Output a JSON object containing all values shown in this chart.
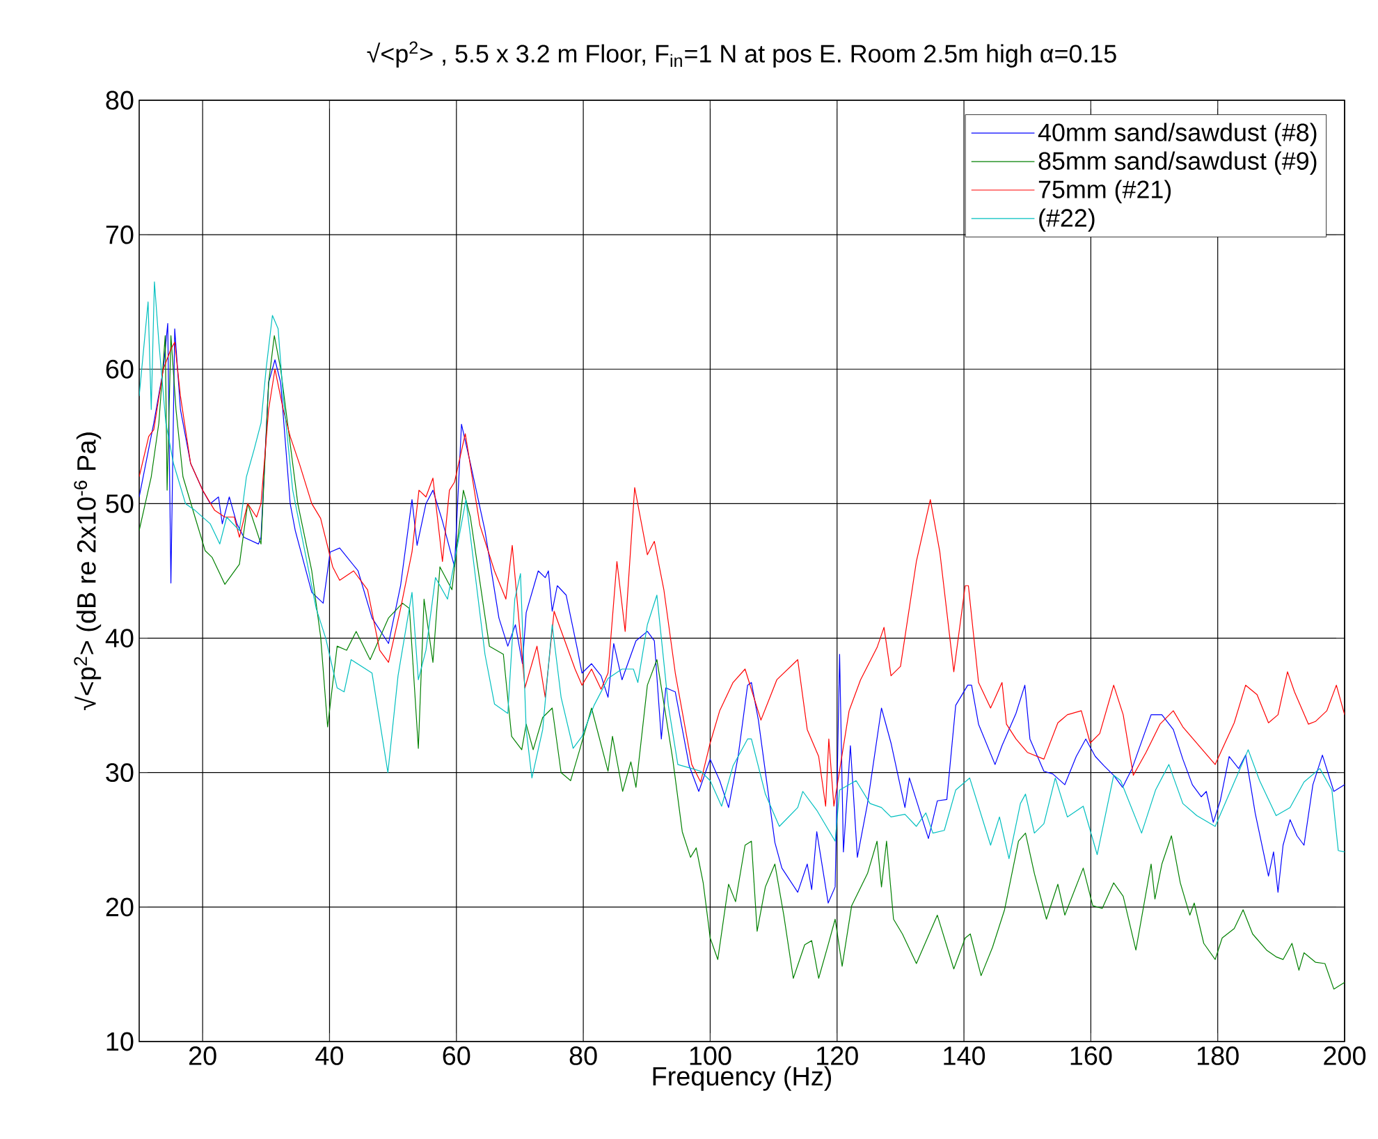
{
  "chart_data": {
    "type": "line",
    "title": "√<p$^{2}$> , 5.5 x 3.2 m Floor, F$_{in}$=1 N at pos E. Room 2.5m high α=0.15",
    "xlabel": "Frequency (Hz)",
    "ylabel": "√<p$^{2}$> (dB re 2x10$^{-6}$ Pa)",
    "xlim": [
      10,
      200
    ],
    "xticks": [
      20,
      40,
      60,
      80,
      100,
      120,
      140,
      160,
      180,
      200
    ],
    "ylim": [
      10,
      80
    ],
    "yticks": [
      10,
      20,
      30,
      40,
      50,
      60,
      70,
      80
    ],
    "grid": true,
    "legend": "top right",
    "series": [
      {
        "name": "40mm sand/sawdust (#8)",
        "color": "#0000ff",
        "x": [
          10,
          12.3,
          13.8,
          14.5,
          15,
          15.6,
          16.5,
          18.1,
          20,
          21.2,
          22.5,
          23.1,
          24.2,
          25.4,
          26.5,
          28.8,
          29.2,
          30.4,
          31.4,
          32.3,
          33.8,
          34.6,
          37.2,
          39,
          40.1,
          41.6,
          44.5,
          46.7,
          49.3,
          51.2,
          53,
          53.8,
          55.2,
          56.3,
          57.8,
          59.7,
          60.8,
          62.2,
          64.5,
          66.7,
          68.1,
          69.3,
          70.4,
          71.0,
          72.9,
          74,
          74.5,
          75.1,
          75.9,
          77.3,
          79.1,
          79.8,
          81.3,
          82.8,
          83.9,
          84.8,
          86.1,
          88.3,
          90.1,
          91.2,
          92.3,
          93,
          94.5,
          96.7,
          98.2,
          100,
          101.5,
          102.9,
          104.4,
          105.9,
          106.5,
          107.6,
          110.2,
          111.3,
          113.8,
          115.3,
          116,
          116.8,
          118.6,
          119.7,
          120.4,
          121,
          122.1,
          123.2,
          124.8,
          127,
          128.5,
          130.7,
          131.4,
          134.4,
          135.8,
          137.3,
          138.7,
          140.6,
          141.2,
          142.3,
          144.9,
          146,
          148.2,
          149.6,
          150.4,
          152.6,
          154,
          155.9,
          157.7,
          159.2,
          160.7,
          162.1,
          163.6,
          165,
          166.5,
          169.5,
          171.2,
          173,
          174.5,
          176,
          177.4,
          178.2,
          179.3,
          180.4,
          181.8,
          183.3,
          184.4,
          185.9,
          188,
          188.8,
          189.5,
          190.3,
          191.4,
          192.5,
          193.6,
          195,
          196.5,
          198.3,
          200
        ],
        "values": [
          50.5,
          56,
          60,
          63.4,
          44.1,
          63,
          57,
          53,
          51,
          50,
          50.5,
          48.5,
          50.5,
          48.5,
          47.5,
          47,
          47.5,
          59,
          60.7,
          59,
          50,
          48,
          43.4,
          42.6,
          46.4,
          46.7,
          45,
          41.5,
          39.6,
          43.9,
          50.3,
          46.9,
          50,
          51,
          48.7,
          45.3,
          55.9,
          53,
          48,
          41.5,
          39.4,
          41,
          38.1,
          41.9,
          45,
          44.5,
          45,
          42,
          43.9,
          43.2,
          39.1,
          37.4,
          38.1,
          37.2,
          35.6,
          39.6,
          36.9,
          39.8,
          40.5,
          39.8,
          32.5,
          36.3,
          36,
          30.5,
          28.6,
          31,
          29.4,
          27.4,
          31.2,
          36.5,
          36.7,
          33.9,
          24.8,
          22.9,
          21.1,
          23.2,
          21.3,
          25.6,
          20.3,
          21.5,
          38.8,
          24.1,
          32,
          23.7,
          27.7,
          34.8,
          32.2,
          27.4,
          29.6,
          25.1,
          27.9,
          28,
          35,
          36.5,
          36.5,
          33.6,
          30.6,
          32,
          34.4,
          36.5,
          32.5,
          30.1,
          29.9,
          29.1,
          31.2,
          32.5,
          31.2,
          30.5,
          29.8,
          28.9,
          30.3,
          34.3,
          34.3,
          33.2,
          31,
          29.1,
          28.2,
          28.6,
          26.3,
          27.9,
          31.2,
          30.3,
          31.3,
          27,
          22.3,
          24.1,
          21.1,
          24.6,
          26.5,
          25.3,
          24.6,
          29.1,
          31.3,
          28.6,
          29.1
        ]
      },
      {
        "name": "85mm sand/sawdust (#9)",
        "color": "#008000",
        "x": [
          10,
          11.9,
          13.1,
          14.1,
          14.4,
          15,
          15.8,
          16.9,
          18.8,
          20.4,
          21.5,
          23.5,
          25.8,
          27.1,
          28.5,
          29.2,
          30.4,
          31.3,
          32.3,
          35,
          37.2,
          38.6,
          39.7,
          41.2,
          42.7,
          44.2,
          46.4,
          49.3,
          51.5,
          52.6,
          54,
          54.9,
          56.3,
          57.4,
          59.3,
          61.1,
          62.2,
          65.2,
          67.4,
          68.7,
          70.3,
          71,
          72.1,
          73.6,
          75.1,
          76.5,
          78,
          79.5,
          81.3,
          83.9,
          84.6,
          86.2,
          87.5,
          88.3,
          90.1,
          91.6,
          94.1,
          95.6,
          96.9,
          97.8,
          98.9,
          100,
          101.2,
          102.9,
          104,
          105.5,
          106.5,
          107.4,
          108.7,
          110.2,
          111.6,
          113.1,
          114.9,
          116,
          117.1,
          118.6,
          119.7,
          120.8,
          122.3,
          124.8,
          126.3,
          127,
          127.8,
          128.9,
          130.3,
          132.5,
          135.8,
          138.4,
          140.2,
          141,
          142.7,
          144.5,
          146.4,
          148.6,
          149.7,
          151.1,
          153,
          154.8,
          155.9,
          158.8,
          160.3,
          161.8,
          163.6,
          165.1,
          167.1,
          169.5,
          170.1,
          171.2,
          172.7,
          174.1,
          175.6,
          176.3,
          177.8,
          179.6,
          180.7,
          182.6,
          184,
          185.5,
          187.7,
          189.2,
          190.3,
          191.7,
          192.8,
          193.6,
          195.4,
          196.9,
          198.3,
          200
        ],
        "values": [
          48,
          52,
          56,
          62.5,
          51,
          62.5,
          57,
          52,
          49,
          46.5,
          46,
          44,
          45.5,
          50,
          48,
          47,
          59,
          62.5,
          60,
          50,
          45,
          40.1,
          33.4,
          39.4,
          39.1,
          40.5,
          38.4,
          41.5,
          42.6,
          42.2,
          31.8,
          42.9,
          38.2,
          45.3,
          43.6,
          51,
          49,
          39.4,
          38.8,
          32.7,
          31.7,
          33.6,
          31.7,
          34.1,
          34.8,
          30,
          29.4,
          31.8,
          34.8,
          30.1,
          32.7,
          28.6,
          30.8,
          28.9,
          36.5,
          38.4,
          31,
          25.6,
          23.7,
          24.4,
          21.8,
          17.7,
          16.1,
          21.7,
          20.4,
          24.6,
          24.9,
          18.2,
          21.5,
          23.2,
          19.4,
          14.7,
          17.2,
          17.5,
          14.7,
          17.2,
          19.1,
          15.6,
          20.1,
          22.5,
          24.9,
          21.5,
          24.9,
          19.1,
          18,
          15.8,
          19.4,
          15.4,
          17.7,
          18,
          14.9,
          17,
          19.8,
          24.9,
          25.5,
          22.5,
          19.1,
          21.7,
          19.4,
          22.9,
          20.1,
          19.9,
          21.8,
          20.8,
          16.8,
          23.2,
          20.6,
          23.2,
          25.3,
          21.8,
          19.4,
          20.3,
          17.3,
          16.1,
          17.7,
          18.4,
          19.8,
          18,
          16.8,
          16.3,
          16.1,
          17.3,
          15.3,
          16.6,
          15.9,
          15.8,
          13.9,
          14.4
        ]
      },
      {
        "name": "75mm (#21)",
        "color": "#ff0000",
        "x": [
          10,
          11.5,
          12.3,
          13.8,
          15,
          15.6,
          16.5,
          18.1,
          20,
          21.9,
          23.5,
          25,
          25.8,
          27.1,
          28.5,
          29.2,
          30.4,
          31.4,
          32.7,
          33.8,
          35.3,
          37.2,
          38.6,
          40.5,
          41.6,
          43.8,
          46,
          47.9,
          49.3,
          51.2,
          53,
          54.1,
          55.2,
          56.3,
          57.8,
          58.9,
          59.7,
          61.4,
          63.7,
          66,
          67.8,
          68.8,
          70.8,
          72.7,
          74,
          75.4,
          78.7,
          79.8,
          81.3,
          82.8,
          83.9,
          85.3,
          86.6,
          88.1,
          90.1,
          91.2,
          92.7,
          94.5,
          97.1,
          98.5,
          100,
          101.5,
          103.6,
          105.5,
          108,
          110.5,
          113.8,
          115.3,
          117.1,
          118.2,
          118.7,
          119.5,
          121.9,
          123.7,
          126.3,
          127.4,
          128.5,
          130,
          132.5,
          134.7,
          136.2,
          138.4,
          140.2,
          140.7,
          142.3,
          144.2,
          146,
          146.7,
          148.2,
          150,
          152.6,
          154.8,
          156.3,
          158.5,
          159.9,
          161.4,
          163.6,
          165.1,
          166.7,
          168.7,
          170.9,
          173,
          174.5,
          177.4,
          179.6,
          182.6,
          184.4,
          186.2,
          188,
          189.5,
          191,
          192.1,
          194.3,
          195.4,
          197.2,
          198.7,
          200
        ],
        "values": [
          52,
          55,
          55.5,
          60,
          61.5,
          62,
          58,
          53,
          51,
          49.5,
          49,
          49,
          47.5,
          50,
          49,
          50,
          57,
          60,
          57,
          55,
          52.9,
          50,
          48.9,
          45.3,
          44.3,
          45,
          43.6,
          39.1,
          38.2,
          42.2,
          46.4,
          51,
          50.5,
          51.9,
          45.7,
          51,
          51.6,
          55.2,
          48.4,
          45,
          42.9,
          46.9,
          36.3,
          39.4,
          35.6,
          42,
          37.7,
          36.5,
          37.7,
          36.2,
          37.4,
          45.7,
          40.5,
          51.2,
          46.2,
          47.2,
          43.6,
          37.4,
          30.6,
          29.3,
          32.2,
          34.6,
          36.7,
          37.7,
          33.9,
          36.9,
          38.4,
          33.2,
          31.2,
          27.5,
          32.5,
          27.5,
          34.6,
          36.9,
          39.3,
          40.8,
          37.2,
          37.9,
          45.7,
          50.3,
          46.4,
          37.5,
          43.9,
          43.9,
          36.7,
          34.8,
          36.7,
          33.6,
          32.5,
          31.5,
          31,
          33.7,
          34.3,
          34.6,
          32.2,
          32.9,
          36.5,
          34.3,
          29.8,
          31.5,
          33.6,
          34.6,
          33.4,
          31.8,
          30.6,
          33.7,
          36.5,
          35.8,
          33.7,
          34.3,
          37.5,
          36,
          33.6,
          33.8,
          34.6,
          36.5,
          34.3
        ]
      },
      {
        "name": "(#22)",
        "color": "#00bfbf",
        "x": [
          10,
          10.8,
          11.4,
          11.9,
          12.4,
          13.1,
          14.2,
          15.4,
          17.3,
          18.8,
          21.2,
          22.7,
          23.8,
          25.8,
          26.9,
          28.1,
          29.2,
          30,
          31,
          31.9,
          32.7,
          34.2,
          37.9,
          39.4,
          41.2,
          42.3,
          43.4,
          46.7,
          49.2,
          50.8,
          53,
          54,
          55.2,
          56.7,
          58.6,
          61.5,
          64.5,
          66,
          68.1,
          69.2,
          70.1,
          71,
          71.9,
          73.6,
          75.1,
          76.5,
          78.4,
          79.8,
          81.7,
          83.9,
          86.1,
          87.9,
          88.6,
          90.1,
          91.6,
          93.4,
          94.9,
          97.1,
          98.5,
          100,
          101.8,
          103.6,
          105.9,
          106.5,
          108.7,
          110.9,
          113.8,
          114.6,
          116.8,
          119.7,
          120.4,
          123,
          125.2,
          127,
          128.5,
          130.7,
          132.5,
          134,
          135.1,
          136.9,
          138.7,
          140.9,
          144.2,
          145.6,
          147.1,
          148.9,
          149.7,
          151.1,
          152.6,
          154.4,
          156.3,
          158.8,
          161,
          163.6,
          164.7,
          168,
          170.2,
          172.3,
          174.5,
          176.7,
          179.6,
          181.8,
          184.8,
          186.6,
          189.2,
          191.4,
          193.6,
          196.1,
          198,
          199,
          200
        ],
        "values": [
          58,
          62,
          65,
          57,
          66.5,
          62,
          56,
          53,
          50,
          49.5,
          48.5,
          47,
          49,
          48,
          52,
          54,
          56,
          60,
          64,
          63,
          58,
          51,
          42.2,
          40,
          36.3,
          36,
          38.4,
          37.4,
          30,
          37.2,
          43.4,
          36.9,
          39.1,
          44.5,
          42.9,
          50.3,
          38.8,
          35.1,
          34.4,
          42.9,
          44.8,
          33.2,
          29.6,
          33.2,
          41,
          35.6,
          31.8,
          32.7,
          35,
          37,
          37.7,
          37.7,
          36.7,
          41,
          43.2,
          35,
          30.6,
          30.3,
          30.1,
          29.4,
          27.5,
          30.5,
          32.5,
          32.5,
          28.4,
          26,
          27.4,
          28.6,
          27.2,
          24.9,
          28.7,
          29.4,
          27.7,
          27.4,
          26.7,
          26.9,
          26,
          27,
          25.5,
          25.7,
          28.7,
          29.6,
          24.6,
          26.7,
          23.6,
          27.7,
          28.4,
          25.5,
          26.2,
          29.6,
          26.7,
          27.5,
          23.9,
          29.8,
          29.4,
          25.5,
          28.7,
          30.6,
          27.7,
          26.8,
          26,
          28.4,
          31.7,
          29.4,
          26.8,
          27.4,
          29.3,
          30.3,
          28.7,
          24.2,
          24.1
        ]
      }
    ]
  }
}
